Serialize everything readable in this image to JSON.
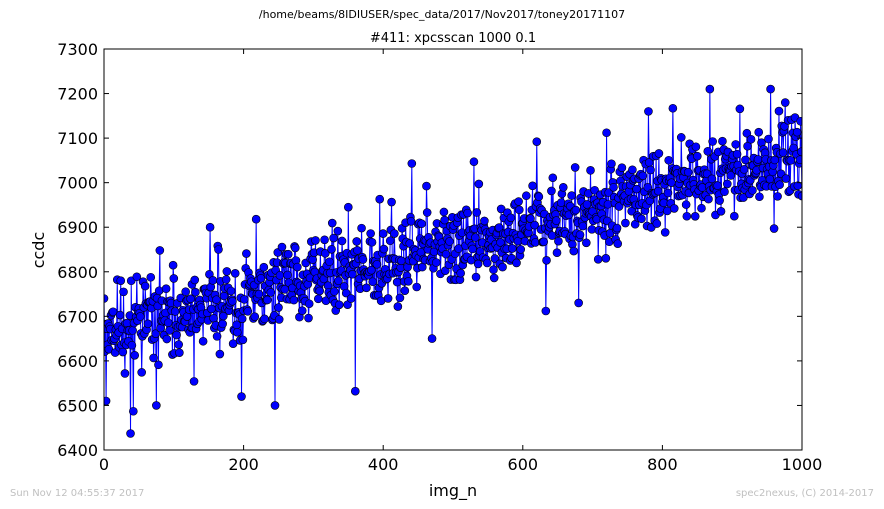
{
  "chart_data": {
    "type": "line",
    "suptitle": "/home/beams/8IDIUSER/spec_data/2017/Nov2017/toney20171107",
    "title": "#411: xpcsscan 1000 0.1",
    "xlabel": "img_n",
    "ylabel": "ccdc",
    "xlim": [
      0,
      1000
    ],
    "ylim": [
      6400,
      7300
    ],
    "xticks": [
      "0",
      "200",
      "400",
      "600",
      "800",
      "1000"
    ],
    "yticks": [
      "6400",
      "6500",
      "6600",
      "6700",
      "6800",
      "6900",
      "7000",
      "7100",
      "7200",
      "7300"
    ],
    "grid": false,
    "marker": "circle",
    "n_points": 1001,
    "series": [
      {
        "color": "#0000ff",
        "trend_start": [
          0,
          6660
        ],
        "trend_end": [
          1000,
          7060
        ],
        "noise_sd": 45,
        "highlights": [
          [
            0,
            6740
          ],
          [
            3,
            6510
          ],
          [
            24,
            6780
          ],
          [
            38,
            6437
          ],
          [
            42,
            6487
          ],
          [
            75,
            6500
          ],
          [
            80,
            6848
          ],
          [
            129,
            6554
          ],
          [
            152,
            6900
          ],
          [
            197,
            6520
          ],
          [
            218,
            6918
          ],
          [
            245,
            6500
          ],
          [
            350,
            6945
          ],
          [
            360,
            6532
          ],
          [
            395,
            6963
          ],
          [
            441,
            7043
          ],
          [
            470,
            6650
          ],
          [
            530,
            7047
          ],
          [
            620,
            7092
          ],
          [
            633,
            6712
          ],
          [
            680,
            6730
          ],
          [
            720,
            7112
          ],
          [
            780,
            7160
          ],
          [
            815,
            7167
          ],
          [
            868,
            7210
          ],
          [
            955,
            7210
          ],
          [
            960,
            6897
          ],
          [
            1000,
            6970
          ]
        ]
      }
    ]
  },
  "footer": {
    "timestamp": "Sun Nov 12 04:55:37 2017",
    "credit": "spec2nexus, (C) 2014-2017"
  }
}
